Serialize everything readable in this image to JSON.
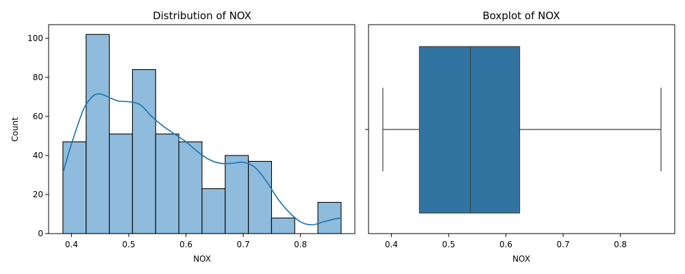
{
  "chart_data": [
    {
      "type": "bar",
      "subtype": "histogram-with-kde",
      "title": "Distribution of NOX",
      "xlabel": "NOX",
      "ylabel": "Count",
      "xlim": [
        0.36,
        0.895
      ],
      "ylim": [
        0,
        107
      ],
      "xticks": [
        0.4,
        0.5,
        0.6,
        0.7,
        0.8
      ],
      "yticks": [
        0,
        20,
        40,
        60,
        80,
        100
      ],
      "bins": [
        {
          "x0": 0.385,
          "x1": 0.4255,
          "count": 47
        },
        {
          "x0": 0.4255,
          "x1": 0.466,
          "count": 102
        },
        {
          "x0": 0.466,
          "x1": 0.5065,
          "count": 51
        },
        {
          "x0": 0.5065,
          "x1": 0.547,
          "count": 84
        },
        {
          "x0": 0.547,
          "x1": 0.5875,
          "count": 51
        },
        {
          "x0": 0.5875,
          "x1": 0.628,
          "count": 47
        },
        {
          "x0": 0.628,
          "x1": 0.6685,
          "count": 23
        },
        {
          "x0": 0.6685,
          "x1": 0.709,
          "count": 40
        },
        {
          "x0": 0.709,
          "x1": 0.7495,
          "count": 37
        },
        {
          "x0": 0.7495,
          "x1": 0.79,
          "count": 8
        },
        {
          "x0": 0.79,
          "x1": 0.8305,
          "count": 0
        },
        {
          "x0": 0.8305,
          "x1": 0.871,
          "count": 16
        }
      ],
      "kde": {
        "x": [
          0.385,
          0.4,
          0.42,
          0.43,
          0.44,
          0.45,
          0.46,
          0.48,
          0.5,
          0.52,
          0.54,
          0.56,
          0.58,
          0.6,
          0.62,
          0.64,
          0.66,
          0.68,
          0.7,
          0.72,
          0.74,
          0.76,
          0.78,
          0.8,
          0.82,
          0.84,
          0.86,
          0.871
        ],
        "y": [
          31,
          46,
          63,
          68,
          71,
          71.5,
          70.5,
          68,
          67.5,
          66,
          60,
          55,
          51,
          47,
          42,
          38,
          36,
          36,
          36.5,
          34,
          27,
          18,
          11,
          6,
          4.5,
          6,
          7.5,
          8
        ]
      },
      "bar_color": "#8fbbdc",
      "line_color": "#1f77b4",
      "grid": false
    },
    {
      "type": "boxplot",
      "title": "Boxplot of NOX",
      "xlabel": "NOX",
      "xlim": [
        0.36,
        0.895
      ],
      "xticks": [
        0.4,
        0.5,
        0.6,
        0.7,
        0.8
      ],
      "whisker_low": 0.385,
      "q1": 0.449,
      "median": 0.538,
      "q3": 0.624,
      "whisker_high": 0.871,
      "box_color": "#3274a1",
      "grid": false
    }
  ]
}
